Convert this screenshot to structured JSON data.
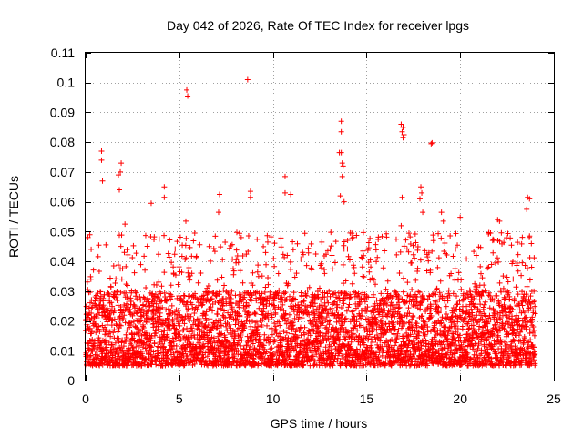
{
  "chart_data": {
    "type": "scatter",
    "title": "Day 042 of 2026, Rate Of TEC Index for receiver lpgs",
    "xlabel": "GPS time / hours",
    "ylabel": "ROTI / TECUs",
    "xlim": [
      0,
      25
    ],
    "ylim": [
      0,
      0.11
    ],
    "x_ticks": [
      "0",
      "5",
      "10",
      "15",
      "20",
      "25"
    ],
    "y_ticks": [
      "0",
      "0.01",
      "0.02",
      "0.03",
      "0.04",
      "0.05",
      "0.06",
      "0.07",
      "0.08",
      "0.09",
      "0.1",
      "0.11"
    ],
    "grid": true,
    "marker": "+",
    "color": "#ff0000",
    "series": [
      {
        "name": "ROTI",
        "x_start": 0.0,
        "x_step": 0.0167,
        "x_end": 24.0,
        "baseline_min": 0.005,
        "baseline_max": 0.03,
        "typical_envelope_max": 0.05
      }
    ],
    "notable_points": [
      {
        "x": 0.85,
        "y": 0.077
      },
      {
        "x": 0.85,
        "y": 0.074
      },
      {
        "x": 0.9,
        "y": 0.067
      },
      {
        "x": 1.9,
        "y": 0.073
      },
      {
        "x": 1.85,
        "y": 0.07
      },
      {
        "x": 1.75,
        "y": 0.069
      },
      {
        "x": 1.8,
        "y": 0.064
      },
      {
        "x": 2.1,
        "y": 0.0525
      },
      {
        "x": 3.5,
        "y": 0.0595
      },
      {
        "x": 4.2,
        "y": 0.065
      },
      {
        "x": 4.2,
        "y": 0.0615
      },
      {
        "x": 5.4,
        "y": 0.0975
      },
      {
        "x": 5.45,
        "y": 0.0955
      },
      {
        "x": 5.35,
        "y": 0.0535
      },
      {
        "x": 7.15,
        "y": 0.0625
      },
      {
        "x": 7.1,
        "y": 0.0565
      },
      {
        "x": 8.65,
        "y": 0.101
      },
      {
        "x": 8.8,
        "y": 0.0635
      },
      {
        "x": 8.8,
        "y": 0.0615
      },
      {
        "x": 10.65,
        "y": 0.0685
      },
      {
        "x": 10.65,
        "y": 0.063
      },
      {
        "x": 10.95,
        "y": 0.0625
      },
      {
        "x": 13.65,
        "y": 0.087
      },
      {
        "x": 13.65,
        "y": 0.0835
      },
      {
        "x": 13.55,
        "y": 0.0765
      },
      {
        "x": 13.65,
        "y": 0.0765
      },
      {
        "x": 13.7,
        "y": 0.073
      },
      {
        "x": 13.75,
        "y": 0.072
      },
      {
        "x": 13.7,
        "y": 0.0685
      },
      {
        "x": 13.6,
        "y": 0.062
      },
      {
        "x": 13.8,
        "y": 0.06
      },
      {
        "x": 16.85,
        "y": 0.086
      },
      {
        "x": 16.95,
        "y": 0.085
      },
      {
        "x": 16.9,
        "y": 0.0835
      },
      {
        "x": 16.95,
        "y": 0.0815
      },
      {
        "x": 17.0,
        "y": 0.0825
      },
      {
        "x": 16.9,
        "y": 0.0615
      },
      {
        "x": 16.85,
        "y": 0.052
      },
      {
        "x": 18.5,
        "y": 0.0798
      },
      {
        "x": 18.45,
        "y": 0.0795
      },
      {
        "x": 17.9,
        "y": 0.065
      },
      {
        "x": 17.95,
        "y": 0.063
      },
      {
        "x": 17.85,
        "y": 0.061
      },
      {
        "x": 18.0,
        "y": 0.0565
      },
      {
        "x": 19.0,
        "y": 0.0565
      },
      {
        "x": 19.1,
        "y": 0.0535
      },
      {
        "x": 20.0,
        "y": 0.0548
      },
      {
        "x": 22.0,
        "y": 0.054
      },
      {
        "x": 22.1,
        "y": 0.0535
      },
      {
        "x": 23.6,
        "y": 0.0615
      },
      {
        "x": 23.7,
        "y": 0.061
      },
      {
        "x": 23.55,
        "y": 0.0575
      },
      {
        "x": 23.7,
        "y": 0.0485
      },
      {
        "x": 23.8,
        "y": 0.046
      }
    ]
  }
}
